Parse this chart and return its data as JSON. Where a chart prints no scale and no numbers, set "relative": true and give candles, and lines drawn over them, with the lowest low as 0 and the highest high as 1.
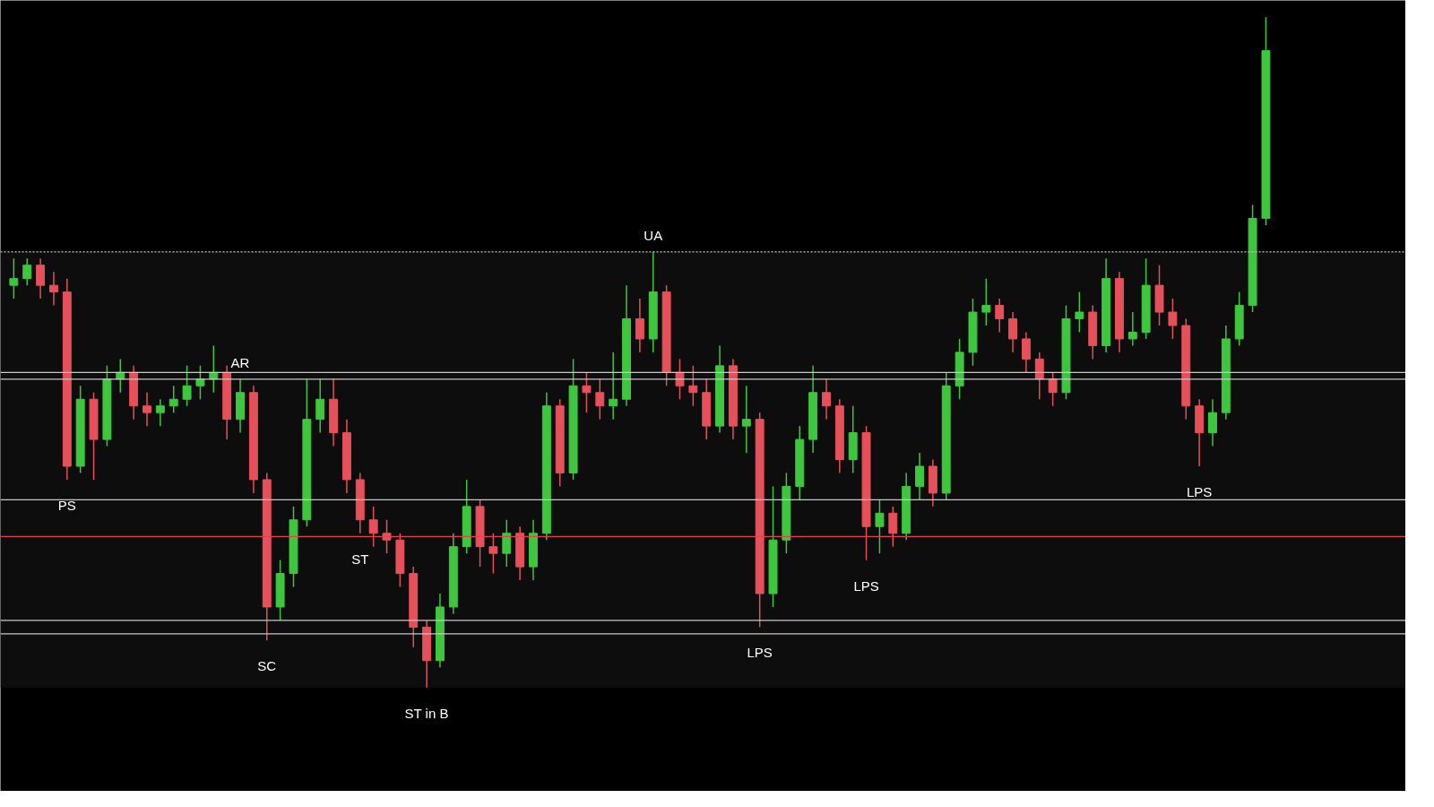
{
  "chart_data": {
    "type": "candlestick",
    "relative": true,
    "tick_labels": false,
    "grid": false,
    "categories": [
      null,
      null,
      null,
      null,
      null,
      null,
      null,
      null,
      null,
      null,
      null,
      null,
      null,
      null,
      null,
      null,
      null,
      null,
      null,
      null,
      null,
      null,
      null,
      null,
      null,
      null,
      null,
      null,
      null,
      null,
      null,
      null,
      null,
      null,
      null,
      null,
      null,
      null,
      null,
      null,
      null,
      null,
      null,
      null,
      null,
      null,
      null,
      null,
      null,
      null,
      null,
      null,
      null,
      null,
      null,
      null,
      null,
      null,
      null,
      null,
      null,
      null,
      null,
      null,
      null,
      null,
      null,
      null,
      null,
      null,
      null,
      null,
      null,
      null,
      null,
      null,
      null,
      null,
      null,
      null,
      null,
      null,
      null,
      null,
      null,
      null,
      null,
      null,
      null,
      null,
      null,
      null,
      null,
      null,
      null
    ],
    "ohlc": [
      [
        0.6,
        0.64,
        0.58,
        0.61
      ],
      [
        0.61,
        0.64,
        0.6,
        0.63
      ],
      [
        0.63,
        0.64,
        0.58,
        0.6
      ],
      [
        0.6,
        0.62,
        0.57,
        0.59
      ],
      [
        0.59,
        0.61,
        0.31,
        0.33
      ],
      [
        0.33,
        0.45,
        0.32,
        0.43
      ],
      [
        0.43,
        0.44,
        0.31,
        0.37
      ],
      [
        0.37,
        0.48,
        0.36,
        0.46
      ],
      [
        0.46,
        0.49,
        0.44,
        0.47
      ],
      [
        0.47,
        0.48,
        0.4,
        0.42
      ],
      [
        0.42,
        0.44,
        0.39,
        0.41
      ],
      [
        0.41,
        0.43,
        0.39,
        0.42
      ],
      [
        0.42,
        0.45,
        0.41,
        0.43
      ],
      [
        0.43,
        0.48,
        0.42,
        0.45
      ],
      [
        0.45,
        0.48,
        0.43,
        0.46
      ],
      [
        0.46,
        0.51,
        0.44,
        0.47
      ],
      [
        0.47,
        0.48,
        0.37,
        0.4
      ],
      [
        0.4,
        0.46,
        0.38,
        0.44
      ],
      [
        0.44,
        0.45,
        0.29,
        0.31
      ],
      [
        0.31,
        0.32,
        0.07,
        0.12
      ],
      [
        0.12,
        0.19,
        0.1,
        0.17
      ],
      [
        0.17,
        0.27,
        0.15,
        0.25
      ],
      [
        0.25,
        0.46,
        0.24,
        0.4
      ],
      [
        0.4,
        0.46,
        0.38,
        0.43
      ],
      [
        0.43,
        0.46,
        0.36,
        0.38
      ],
      [
        0.38,
        0.4,
        0.29,
        0.31
      ],
      [
        0.31,
        0.32,
        0.23,
        0.25
      ],
      [
        0.25,
        0.27,
        0.21,
        0.23
      ],
      [
        0.23,
        0.25,
        0.2,
        0.22
      ],
      [
        0.22,
        0.23,
        0.15,
        0.17
      ],
      [
        0.17,
        0.18,
        0.06,
        0.09
      ],
      [
        0.09,
        0.1,
        0,
        0.04
      ],
      [
        0.04,
        0.14,
        0.03,
        0.12
      ],
      [
        0.12,
        0.23,
        0.11,
        0.21
      ],
      [
        0.21,
        0.31,
        0.2,
        0.27
      ],
      [
        0.27,
        0.28,
        0.18,
        0.21
      ],
      [
        0.21,
        0.23,
        0.17,
        0.2
      ],
      [
        0.2,
        0.25,
        0.18,
        0.23
      ],
      [
        0.23,
        0.24,
        0.16,
        0.18
      ],
      [
        0.18,
        0.25,
        0.16,
        0.23
      ],
      [
        0.23,
        0.44,
        0.22,
        0.42
      ],
      [
        0.42,
        0.43,
        0.3,
        0.32
      ],
      [
        0.32,
        0.49,
        0.31,
        0.45
      ],
      [
        0.45,
        0.47,
        0.41,
        0.44
      ],
      [
        0.44,
        0.46,
        0.4,
        0.42
      ],
      [
        0.42,
        0.5,
        0.4,
        0.43
      ],
      [
        0.43,
        0.6,
        0.42,
        0.55
      ],
      [
        0.55,
        0.58,
        0.5,
        0.52
      ],
      [
        0.52,
        0.65,
        0.5,
        0.59
      ],
      [
        0.59,
        0.6,
        0.45,
        0.47
      ],
      [
        0.47,
        0.49,
        0.43,
        0.45
      ],
      [
        0.45,
        0.48,
        0.42,
        0.44
      ],
      [
        0.44,
        0.46,
        0.37,
        0.39
      ],
      [
        0.39,
        0.51,
        0.38,
        0.48
      ],
      [
        0.48,
        0.49,
        0.37,
        0.39
      ],
      [
        0.39,
        0.45,
        0.35,
        0.4
      ],
      [
        0.4,
        0.41,
        0.09,
        0.14
      ],
      [
        0.14,
        0.3,
        0.12,
        0.22
      ],
      [
        0.22,
        0.32,
        0.2,
        0.3
      ],
      [
        0.3,
        0.39,
        0.28,
        0.37
      ],
      [
        0.37,
        0.48,
        0.35,
        0.44
      ],
      [
        0.44,
        0.46,
        0.4,
        0.42
      ],
      [
        0.42,
        0.43,
        0.32,
        0.34
      ],
      [
        0.34,
        0.42,
        0.32,
        0.38
      ],
      [
        0.38,
        0.39,
        0.19,
        0.24
      ],
      [
        0.24,
        0.28,
        0.2,
        0.26
      ],
      [
        0.26,
        0.27,
        0.21,
        0.23
      ],
      [
        0.23,
        0.32,
        0.22,
        0.3
      ],
      [
        0.3,
        0.35,
        0.28,
        0.33
      ],
      [
        0.33,
        0.34,
        0.27,
        0.29
      ],
      [
        0.29,
        0.47,
        0.28,
        0.45
      ],
      [
        0.45,
        0.52,
        0.43,
        0.5
      ],
      [
        0.5,
        0.58,
        0.48,
        0.56
      ],
      [
        0.56,
        0.61,
        0.54,
        0.57
      ],
      [
        0.57,
        0.58,
        0.53,
        0.55
      ],
      [
        0.55,
        0.56,
        0.5,
        0.52
      ],
      [
        0.52,
        0.53,
        0.47,
        0.49
      ],
      [
        0.49,
        0.5,
        0.43,
        0.46
      ],
      [
        0.46,
        0.47,
        0.42,
        0.44
      ],
      [
        0.44,
        0.57,
        0.43,
        0.55
      ],
      [
        0.55,
        0.59,
        0.53,
        0.56
      ],
      [
        0.56,
        0.57,
        0.49,
        0.51
      ],
      [
        0.51,
        0.64,
        0.5,
        0.61
      ],
      [
        0.61,
        0.62,
        0.5,
        0.52
      ],
      [
        0.52,
        0.56,
        0.51,
        0.53
      ],
      [
        0.53,
        0.64,
        0.52,
        0.6
      ],
      [
        0.6,
        0.63,
        0.54,
        0.56
      ],
      [
        0.56,
        0.58,
        0.52,
        0.54
      ],
      [
        0.54,
        0.55,
        0.4,
        0.42
      ],
      [
        0.42,
        0.43,
        0.33,
        0.38
      ],
      [
        0.38,
        0.43,
        0.36,
        0.41
      ],
      [
        0.41,
        0.54,
        0.4,
        0.52
      ],
      [
        0.52,
        0.59,
        0.51,
        0.57
      ],
      [
        0.57,
        0.72,
        0.56,
        0.7
      ],
      [
        0.7,
        1,
        0.69,
        0.95
      ]
    ],
    "colors": [
      "#3fc63f",
      "#3fc63f",
      "#e5505a",
      "#e5505a",
      "#e5505a",
      "#3fc63f",
      "#e5505a",
      "#3fc63f",
      "#3fc63f",
      "#e5505a",
      "#e5505a",
      "#3fc63f",
      "#3fc63f",
      "#3fc63f",
      "#3fc63f",
      "#3fc63f",
      "#e5505a",
      "#3fc63f",
      "#e5505a",
      "#e5505a",
      "#3fc63f",
      "#3fc63f",
      "#3fc63f",
      "#3fc63f",
      "#e5505a",
      "#e5505a",
      "#e5505a",
      "#e5505a",
      "#e5505a",
      "#e5505a",
      "#e5505a",
      "#e5505a",
      "#3fc63f",
      "#3fc63f",
      "#3fc63f",
      "#e5505a",
      "#e5505a",
      "#3fc63f",
      "#e5505a",
      "#3fc63f",
      "#3fc63f",
      "#e5505a",
      "#3fc63f",
      "#e5505a",
      "#e5505a",
      "#3fc63f",
      "#3fc63f",
      "#e5505a",
      "#3fc63f",
      "#e5505a",
      "#e5505a",
      "#e5505a",
      "#e5505a",
      "#3fc63f",
      "#e5505a",
      "#3fc63f",
      "#e5505a",
      "#3fc63f",
      "#3fc63f",
      "#3fc63f",
      "#3fc63f",
      "#e5505a",
      "#e5505a",
      "#3fc63f",
      "#e5505a",
      "#3fc63f",
      "#e5505a",
      "#3fc63f",
      "#3fc63f",
      "#e5505a",
      "#3fc63f",
      "#3fc63f",
      "#3fc63f",
      "#3fc63f",
      "#e5505a",
      "#e5505a",
      "#e5505a",
      "#e5505a",
      "#e5505a",
      "#3fc63f",
      "#3fc63f",
      "#e5505a",
      "#3fc63f",
      "#e5505a",
      "#3fc63f",
      "#3fc63f",
      "#e5505a",
      "#e5505a",
      "#e5505a",
      "#e5505a",
      "#3fc63f",
      "#3fc63f",
      "#3fc63f",
      "#3fc63f",
      "#3fc63f"
    ],
    "bands": [
      {
        "axis": "y",
        "from": 0,
        "to": 0.65,
        "color": "#0d0d0d"
      }
    ],
    "ref_lines": [
      {
        "axis": "y",
        "value": 0.47,
        "color": "#c8c8c8"
      },
      {
        "axis": "y",
        "value": 0.46,
        "color": "#c8c8c8"
      },
      {
        "axis": "y",
        "value": 0.28,
        "color": "#c8c8c8"
      },
      {
        "axis": "y",
        "value": 0.225,
        "color": "#e5404a"
      },
      {
        "axis": "y",
        "value": 0.1,
        "color": "#c8c8c8"
      },
      {
        "axis": "y",
        "value": 0.08,
        "color": "#c8c8c8"
      },
      {
        "axis": "y",
        "value": 0.65,
        "color": "#c8c8c8",
        "line_style": "dotted"
      }
    ],
    "annotations": [
      {
        "text": "PS",
        "y": 0.31
      },
      {
        "text": "SC",
        "y": 0.07
      },
      {
        "text": "AR",
        "y": 0.46
      },
      {
        "text": "ST",
        "y": 0.23
      },
      {
        "text": "ST in B",
        "y": 0
      },
      {
        "text": "UA",
        "y": 0.65
      },
      {
        "text": "LPS",
        "y": 0.09
      },
      {
        "text": "LPS",
        "y": 0.19
      },
      {
        "text": "LPS",
        "y": 0.33
      }
    ]
  }
}
